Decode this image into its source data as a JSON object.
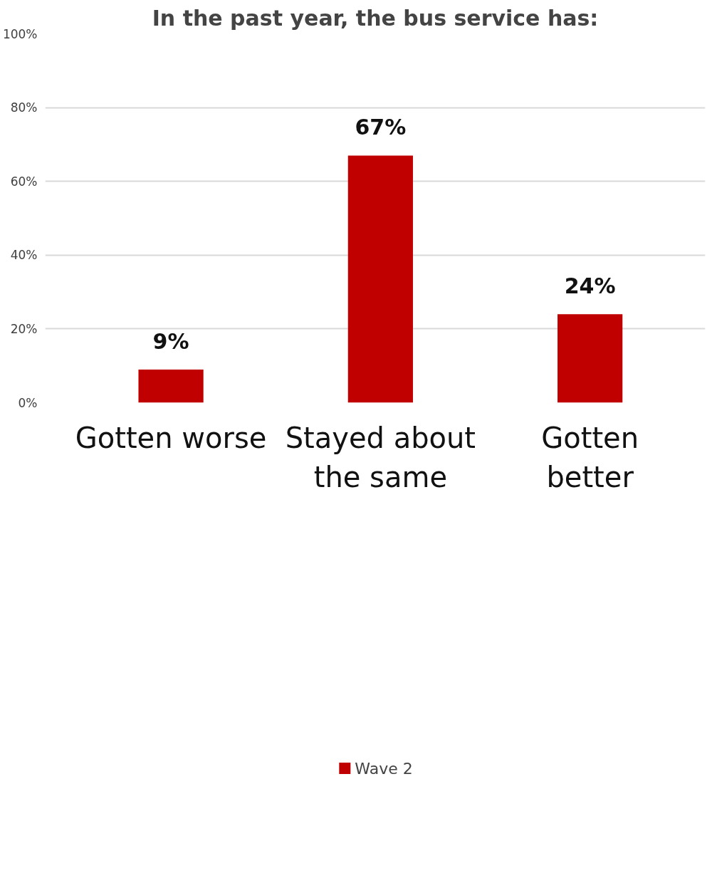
{
  "chart_data": {
    "type": "bar",
    "title": "In the past year, the bus service has:",
    "categories": [
      "Gotten worse",
      "Stayed about the same",
      "Gotten better"
    ],
    "series": [
      {
        "name": "Wave 2",
        "color": "#c00000",
        "values": [
          9,
          67,
          24
        ]
      }
    ],
    "value_labels": [
      "9%",
      "67%",
      "24%"
    ],
    "ylim": [
      0,
      100
    ],
    "yticks": [
      {
        "value": 0,
        "label": "0%"
      },
      {
        "value": 20,
        "label": "20%"
      },
      {
        "value": 40,
        "label": "40%"
      },
      {
        "value": 60,
        "label": "60%"
      },
      {
        "value": 80,
        "label": "80%"
      },
      {
        "value": 100,
        "label": "100%"
      }
    ],
    "grid": "y",
    "legend": "bottom"
  }
}
